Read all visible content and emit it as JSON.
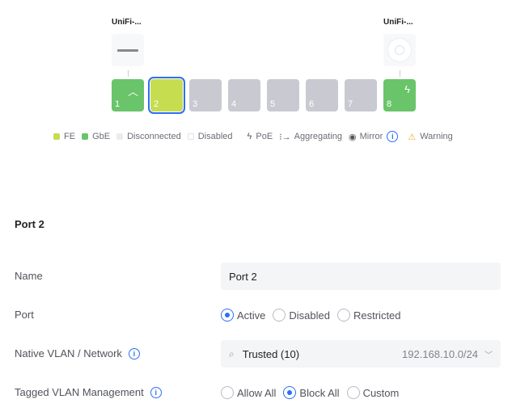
{
  "devices": [
    {
      "label": "UniFi-..."
    },
    {
      "label": "UniFi-..."
    }
  ],
  "ports": [
    {
      "num": "1",
      "state": "gbe",
      "icon": "uplink-icon"
    },
    {
      "num": "2",
      "state": "fe",
      "selected": true
    },
    {
      "num": "3",
      "state": "disconnected"
    },
    {
      "num": "4",
      "state": "disconnected"
    },
    {
      "num": "5",
      "state": "disconnected"
    },
    {
      "num": "6",
      "state": "disconnected"
    },
    {
      "num": "7",
      "state": "disconnected"
    },
    {
      "num": "8",
      "state": "gbe",
      "icon": "poe-bolt-icon"
    }
  ],
  "legend": {
    "fe": "FE",
    "gbe": "GbE",
    "disconnected": "Disconnected",
    "disabled": "Disabled",
    "poe": "PoE",
    "aggregating": "Aggregating",
    "mirror": "Mirror",
    "warning": "Warning"
  },
  "colors": {
    "fe": "#c6dd50",
    "gbe": "#6ac46a",
    "disconnected": "#c9cad1",
    "accent": "#2c6ff5",
    "warning": "#f0b03c"
  },
  "section": {
    "title": "Port 2"
  },
  "form": {
    "name": {
      "label": "Name",
      "value": "Port 2"
    },
    "port": {
      "label": "Port",
      "options": [
        "Active",
        "Disabled",
        "Restricted"
      ],
      "selected": "Active"
    },
    "vlan": {
      "label": "Native VLAN / Network",
      "value": "Trusted (10)",
      "subnet": "192.168.10.0/24"
    },
    "tagged": {
      "label": "Tagged VLAN Management",
      "options": [
        "Allow All",
        "Block All",
        "Custom"
      ],
      "selected": "Block All"
    }
  }
}
